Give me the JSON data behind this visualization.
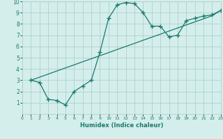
{
  "curve1_x": [
    1,
    2,
    3,
    4,
    5,
    6,
    7,
    8,
    9,
    10,
    11,
    12,
    13,
    14,
    15,
    16,
    17,
    18,
    19,
    20,
    21,
    22,
    23
  ],
  "curve1_y": [
    3.0,
    2.8,
    1.3,
    1.2,
    0.8,
    2.0,
    2.5,
    3.0,
    5.5,
    8.5,
    9.7,
    9.9,
    9.8,
    9.0,
    7.8,
    7.8,
    6.85,
    7.0,
    8.3,
    8.5,
    8.7,
    8.8,
    9.2
  ],
  "curve2_x": [
    1,
    2,
    3,
    4,
    5,
    6,
    7,
    8,
    9,
    10,
    11,
    12,
    13,
    14,
    15,
    16,
    17,
    18,
    19,
    20,
    21,
    22,
    23
  ],
  "curve2_y": [
    3.0,
    3.27,
    3.54,
    3.82,
    4.09,
    4.36,
    4.64,
    4.91,
    5.18,
    5.45,
    5.73,
    6.0,
    6.27,
    6.55,
    6.82,
    7.09,
    7.36,
    7.64,
    7.91,
    8.18,
    8.45,
    8.73,
    9.2
  ],
  "line_color": "#1a7a6e",
  "bg_color": "#d4eeec",
  "grid_color": "#b0d0ce",
  "xlabel": "Humidex (Indice chaleur)",
  "xlim": [
    0,
    23
  ],
  "ylim": [
    0,
    10
  ],
  "xticks": [
    0,
    1,
    2,
    3,
    4,
    5,
    6,
    7,
    8,
    9,
    10,
    11,
    12,
    13,
    14,
    15,
    16,
    17,
    18,
    19,
    20,
    21,
    22,
    23
  ],
  "yticks": [
    1,
    2,
    3,
    4,
    5,
    6,
    7,
    8,
    9,
    10
  ],
  "marker": "+",
  "marker_size": 4.0,
  "linewidth": 0.9
}
